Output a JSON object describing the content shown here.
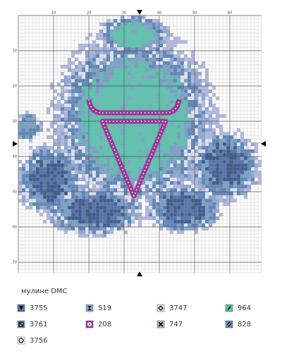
{
  "grid": {
    "x_labels": [
      "10",
      "20",
      "30",
      "40",
      "50",
      "60"
    ],
    "y_labels": [
      "10",
      "20",
      "30",
      "40",
      "50",
      "60",
      "70"
    ]
  },
  "legend": {
    "title": "мулине DMC",
    "items": [
      {
        "code": "3755"
      },
      {
        "code": "519"
      },
      {
        "code": "3747"
      },
      {
        "code": "964"
      },
      {
        "code": "3761"
      },
      {
        "code": "208"
      },
      {
        "code": "747"
      },
      {
        "code": "828"
      },
      {
        "code": "3756"
      }
    ]
  }
}
